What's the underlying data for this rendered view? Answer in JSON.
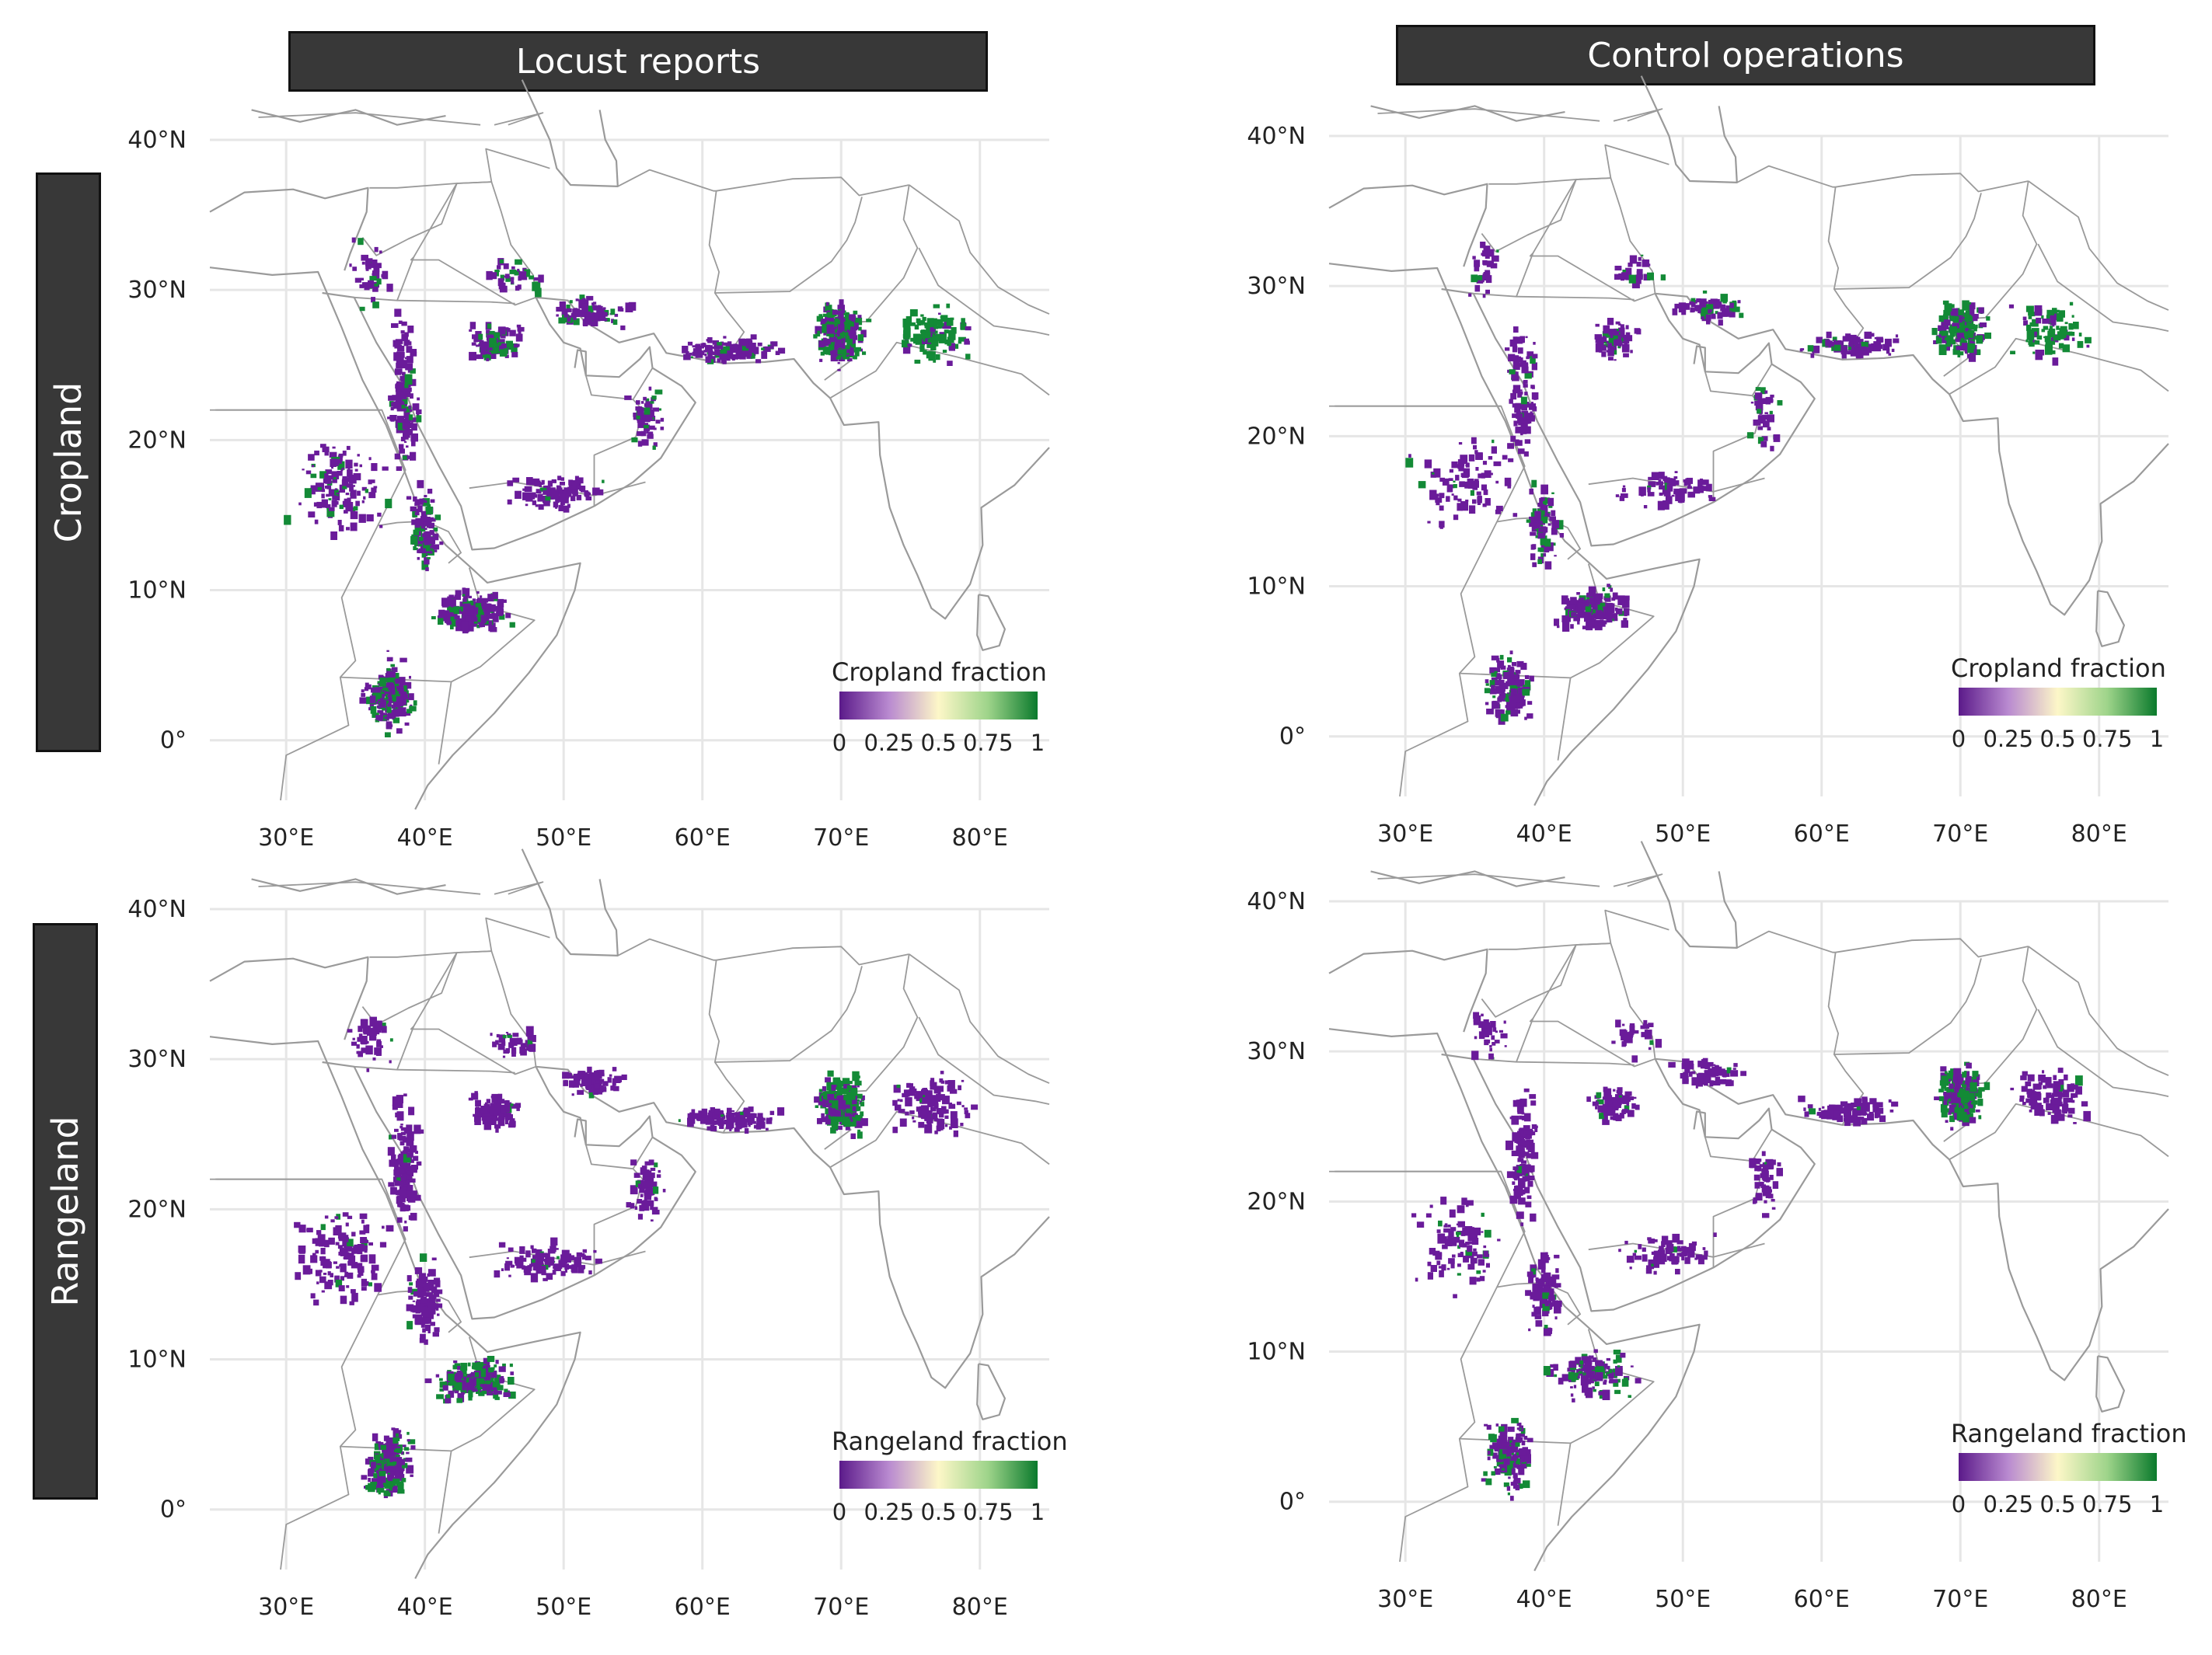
{
  "columns": [
    {
      "title": "Locust reports"
    },
    {
      "title": "Control operations"
    }
  ],
  "rows": [
    {
      "title": "Cropland",
      "legend_title": "Cropland fraction"
    },
    {
      "title": "Rangeland",
      "legend_title": "Rangeland fraction"
    }
  ],
  "axes": {
    "lat_labels": [
      "40°N",
      "30°N",
      "20°N",
      "10°N",
      "0°"
    ],
    "lon_labels": [
      "30°E",
      "40°E",
      "50°E",
      "60°E",
      "70°E",
      "80°E"
    ]
  },
  "legend": {
    "ticks": [
      "0",
      "0.25",
      "0.5",
      "0.75",
      "1"
    ],
    "tick_values": [
      0,
      0.25,
      0.5,
      0.75,
      1
    ],
    "colors": [
      "#5b1a8a",
      "#b98ad0",
      "#fdf7c8",
      "#9ed48a",
      "#0a7a2c"
    ]
  },
  "colors": {
    "purple": "#6a1b9a",
    "green": "#138a36",
    "boundary": "#9a9a9a",
    "grid": "#e6e6e6",
    "header_bg": "#383838"
  }
}
